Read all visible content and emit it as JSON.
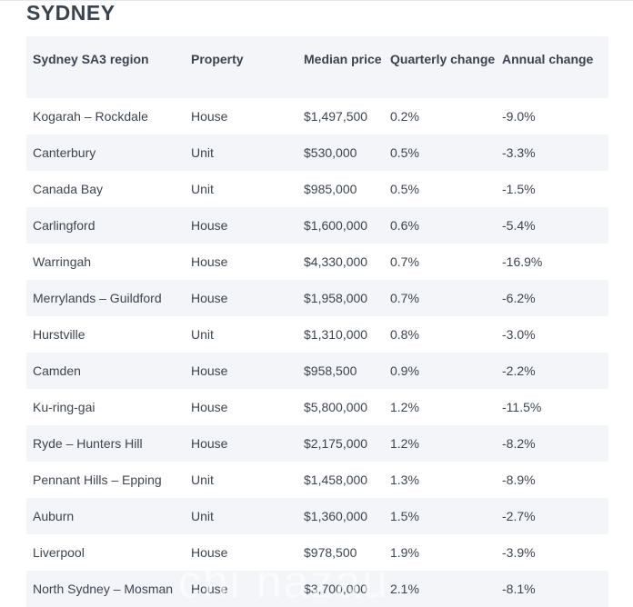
{
  "heading": "SYDNEY",
  "table": {
    "columns": [
      "Sydney SA3 region",
      "Property",
      "Median price",
      "Quarterly change",
      "Annual change"
    ],
    "rows": [
      [
        "Kogarah – Rockdale",
        "House",
        "$1,497,500",
        "0.2%",
        "-9.0%"
      ],
      [
        "Canterbury",
        "Unit",
        "$530,000",
        "0.5%",
        "-3.3%"
      ],
      [
        "Canada Bay",
        "Unit",
        "$985,000",
        "0.5%",
        "-1.5%"
      ],
      [
        "Carlingford",
        "House",
        "$1,600,000",
        "0.6%",
        "-5.4%"
      ],
      [
        "Warringah",
        "House",
        "$4,330,000",
        "0.7%",
        "-16.9%"
      ],
      [
        "Merrylands – Guildford",
        "House",
        "$1,958,000",
        "0.7%",
        "-6.2%"
      ],
      [
        "Hurstville",
        "Unit",
        "$1,310,000",
        "0.8%",
        "-3.0%"
      ],
      [
        "Camden",
        "House",
        "$958,500",
        "0.9%",
        "-2.2%"
      ],
      [
        "Ku-ring-gai",
        "House",
        "$5,800,000",
        "1.2%",
        "-11.5%"
      ],
      [
        "Ryde – Hunters Hill",
        "House",
        "$2,175,000",
        "1.2%",
        "-8.2%"
      ],
      [
        "Pennant Hills – Epping",
        "Unit",
        "$1,458,000",
        "1.3%",
        "-8.9%"
      ],
      [
        "Auburn",
        "Unit",
        "$1,360,000",
        "1.5%",
        "-2.7%"
      ],
      [
        "Liverpool",
        "House",
        "$978,500",
        "1.9%",
        "-3.9%"
      ],
      [
        "North Sydney – Mosman",
        "House",
        "$3,700,000",
        "2.1%",
        "-8.1%"
      ]
    ]
  },
  "watermark": "chi nazau"
}
